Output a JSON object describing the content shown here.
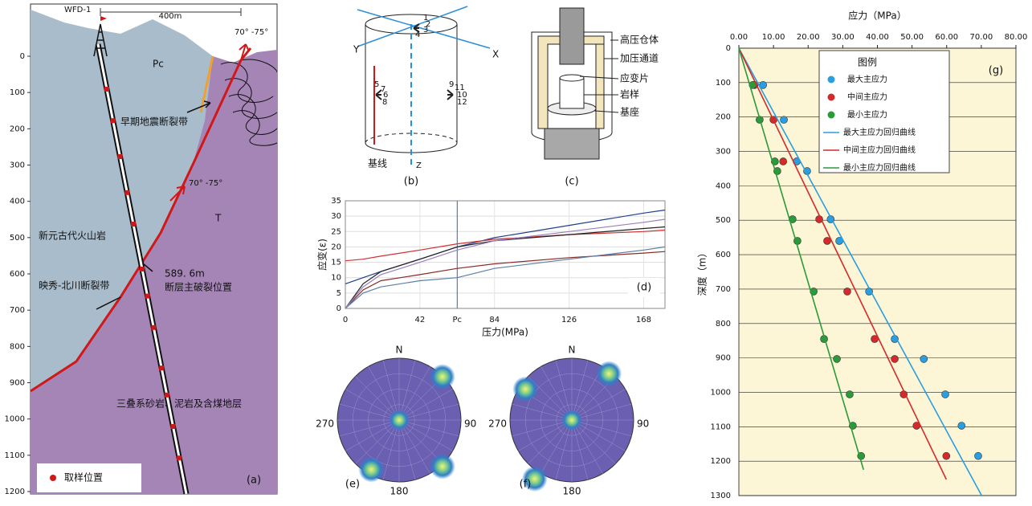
{
  "chart_data": [
    {
      "type": "line",
      "ylabel": "应变(ε)",
      "xlabel": "压力(MPa)",
      "panel_label": "(d)",
      "xlim": [
        0,
        180
      ],
      "xticks": [
        0,
        42,
        {
          "value": 63,
          "label": "Pc"
        },
        84,
        126,
        168
      ],
      "ylim": [
        0,
        35
      ],
      "yticks": [
        0,
        5,
        10,
        15,
        20,
        25,
        30,
        35
      ],
      "grid": true,
      "x": [
        0,
        10,
        20,
        42,
        63,
        84,
        126,
        168,
        180
      ],
      "series": [
        {
          "color": "#1f3f8f",
          "values": [
            8,
            10,
            12,
            16,
            20,
            23,
            27,
            31,
            32
          ]
        },
        {
          "color": "#d23030",
          "values": [
            15.5,
            16,
            17,
            19,
            21,
            22.5,
            24,
            25,
            25.5
          ]
        },
        {
          "color": "#222222",
          "values": [
            0,
            8,
            12,
            16,
            20,
            22,
            24,
            26,
            26.5
          ]
        },
        {
          "color": "#8a2a2a",
          "values": [
            0,
            6,
            9,
            11,
            13,
            14.5,
            16.5,
            18,
            18.5
          ]
        },
        {
          "color": "#5a7fa8",
          "values": [
            0,
            5,
            7,
            9,
            10,
            13,
            16,
            19,
            20
          ]
        },
        {
          "color": "#9a7fc0",
          "values": [
            0,
            7,
            11,
            15,
            19,
            22,
            25,
            28,
            29
          ]
        }
      ]
    },
    {
      "type": "scatter",
      "title": "应力（MPa）",
      "ylabel": "深度（m）",
      "panel_label": "(g)",
      "legend_title": "图例",
      "xlim": [
        0,
        80
      ],
      "xticks": [
        {
          "value": 0,
          "label": "0.00"
        },
        {
          "value": 10,
          "label": "10.00"
        },
        {
          "value": 20,
          "label": "20.00"
        },
        {
          "value": 30,
          "label": "30.00"
        },
        {
          "value": 40,
          "label": "40.00"
        },
        {
          "value": 50,
          "label": "50.00"
        },
        {
          "value": 60,
          "label": "60.00"
        },
        {
          "value": 70,
          "label": "70.00"
        },
        {
          "value": 80,
          "label": "80.00"
        }
      ],
      "ylim": [
        0,
        1300
      ],
      "yticks": [
        0,
        100,
        200,
        300,
        400,
        500,
        600,
        700,
        800,
        900,
        1000,
        1100,
        1200,
        1300
      ],
      "grid": true,
      "series": [
        {
          "name": "最大主应力",
          "type": "scatter",
          "color": "#2a9ee0",
          "x": [
            7.0,
            13.0,
            16.7,
            19.7,
            26.5,
            29.0,
            37.6,
            45.0,
            53.4,
            59.6,
            64.3,
            69.1
          ],
          "values": [
            107,
            208,
            329,
            357,
            497,
            560,
            707,
            845,
            903,
            1006,
            1097,
            1185
          ]
        },
        {
          "name": "中间主应力",
          "type": "scatter",
          "color": "#d42a2a",
          "x": [
            4.5,
            10.0,
            12.8,
            23.2,
            25.5,
            31.3,
            39.2,
            45.0,
            47.6,
            51.3,
            59.9
          ],
          "values": [
            107,
            208,
            329,
            497,
            560,
            707,
            845,
            903,
            1006,
            1097,
            1185
          ]
        },
        {
          "name": "最小主应力",
          "type": "scatter",
          "color": "#2a9a3a",
          "x": [
            4.0,
            6.0,
            10.4,
            11.1,
            15.5,
            16.9,
            21.6,
            24.6,
            28.3,
            32.0,
            32.9,
            35.3
          ],
          "values": [
            107,
            208,
            329,
            357,
            497,
            560,
            707,
            845,
            903,
            1006,
            1097,
            1185
          ]
        },
        {
          "name": "最大主应力回归曲线",
          "type": "line",
          "color": "#2a9ee0",
          "x": [
            0,
            70.1
          ],
          "values": [
            0,
            1300
          ]
        },
        {
          "name": "中间主应力回归曲线",
          "type": "line",
          "color": "#d42a2a",
          "x": [
            0,
            59.9
          ],
          "values": [
            0,
            1253
          ]
        },
        {
          "name": "最小主应力回归曲线",
          "type": "line",
          "color": "#2a9a3a",
          "x": [
            0,
            36.0
          ],
          "values": [
            0,
            1225
          ]
        }
      ]
    }
  ],
  "section_a": {
    "well": "WFD-1",
    "distance": "400m",
    "dip_top": "70°  -75°",
    "unit_pc": "Pc",
    "early_fault": "早期地震断裂带",
    "dip_mid": "70° -75°",
    "unit_t": "T",
    "volcanic": "新元古代火山岩",
    "depth_label": "589. 6m",
    "rupture": "断层主破裂位置",
    "fault_zone": "映秀-北川断裂带",
    "triassic": "三叠系砂岩、泥岩及含煤地层",
    "legend": "取样位置",
    "panel_label": "(a)",
    "ylim": [
      0,
      1200
    ],
    "yticks": [
      0,
      100,
      200,
      300,
      400,
      500,
      600,
      700,
      800,
      900,
      1000,
      1100,
      1200
    ]
  },
  "diagram_b": {
    "axis_y": "Y",
    "axis_x": "X",
    "axis_z": "Z",
    "baseline": "基线",
    "panel_label": "(b)",
    "gauges": [
      "1",
      "2",
      "3",
      "4",
      "5",
      "6",
      "7",
      "8",
      "9",
      "10",
      "11",
      "12"
    ]
  },
  "diagram_c": {
    "labels": [
      "高压仓体",
      "加压通道",
      "应变片",
      "岩样",
      "基座"
    ],
    "panel_label": "(c)"
  },
  "stereonets": [
    {
      "north": "N",
      "east": "90",
      "south": "180",
      "west": "270",
      "panel_label": "(e)"
    },
    {
      "north": "N",
      "east": "90",
      "south": "180",
      "west": "270",
      "panel_label": "(f)"
    }
  ]
}
